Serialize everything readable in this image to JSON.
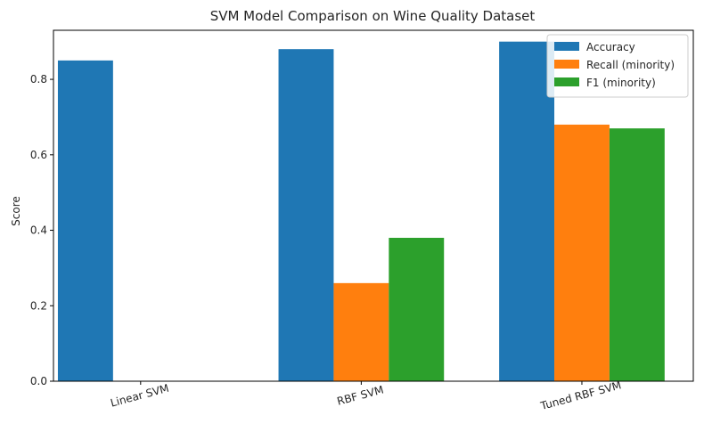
{
  "chart_data": {
    "type": "bar",
    "title": "SVM Model Comparison on Wine Quality Dataset",
    "xlabel": "",
    "ylabel": "Score",
    "categories": [
      "Linear SVM",
      "RBF SVM",
      "Tuned RBF SVM"
    ],
    "series": [
      {
        "name": "Accuracy",
        "color": "#1f77b4",
        "values": [
          0.85,
          0.88,
          0.9
        ]
      },
      {
        "name": "Recall (minority)",
        "color": "#ff7f0e",
        "values": [
          0.0,
          0.26,
          0.68
        ]
      },
      {
        "name": "F1 (minority)",
        "color": "#2ca02c",
        "values": [
          0.0,
          0.38,
          0.67
        ]
      }
    ],
    "ylim": [
      0,
      0.93
    ],
    "yticks": [
      "0.0",
      "0.2",
      "0.4",
      "0.6",
      "0.8"
    ],
    "grid": false,
    "legend_position": "top-right",
    "x_tick_rotation": "slanted"
  }
}
